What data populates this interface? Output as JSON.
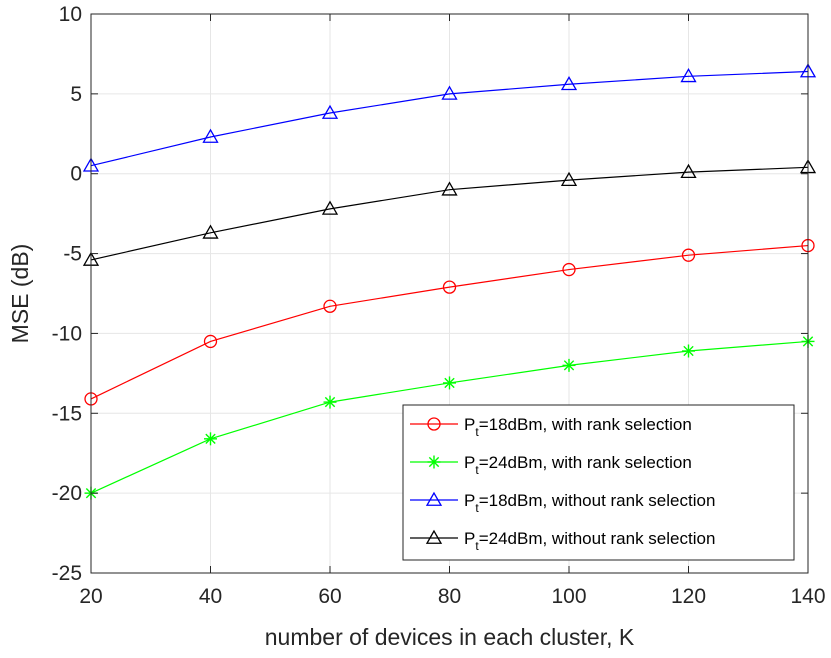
{
  "chart_data": {
    "type": "line",
    "xlabel": "number of devices in each cluster, K",
    "ylabel": "MSE (dB)",
    "xlim": [
      20,
      140
    ],
    "ylim": [
      -25,
      10
    ],
    "xticks": [
      20,
      40,
      60,
      80,
      100,
      120,
      140
    ],
    "yticks": [
      -25,
      -20,
      -15,
      -10,
      -5,
      0,
      5,
      10
    ],
    "grid": true,
    "legend_position": "bottom-right",
    "x": [
      20,
      40,
      60,
      80,
      100,
      120,
      140
    ],
    "series": [
      {
        "name": "P_t=18dBm, with rank selection",
        "legend": {
          "pre": "P",
          "sub": "t",
          "post": "=18dBm, with rank selection"
        },
        "color": "#ff0000",
        "marker": "circle",
        "values": [
          -14.1,
          -10.5,
          -8.3,
          -7.1,
          -6.0,
          -5.1,
          -4.5
        ]
      },
      {
        "name": "P_t=24dBm, with rank selection",
        "legend": {
          "pre": "P",
          "sub": "t",
          "post": "=24dBm, with rank selection"
        },
        "color": "#00ff00",
        "marker": "asterisk",
        "values": [
          -20.0,
          -16.6,
          -14.3,
          -13.1,
          -12.0,
          -11.1,
          -10.5
        ]
      },
      {
        "name": "P_t=18dBm, without rank selection",
        "legend": {
          "pre": "P",
          "sub": "t",
          "post": "=18dBm, without rank selection"
        },
        "color": "#0000ff",
        "marker": "triangle",
        "values": [
          0.5,
          2.3,
          3.8,
          5.0,
          5.6,
          6.1,
          6.4
        ]
      },
      {
        "name": "P_t=24dBm, without rank selection",
        "legend": {
          "pre": "P",
          "sub": "t",
          "post": "=24dBm, without rank selection"
        },
        "color": "#000000",
        "marker": "triangle",
        "values": [
          -5.4,
          -3.7,
          -2.2,
          -1.0,
          -0.4,
          0.1,
          0.4
        ]
      }
    ]
  }
}
